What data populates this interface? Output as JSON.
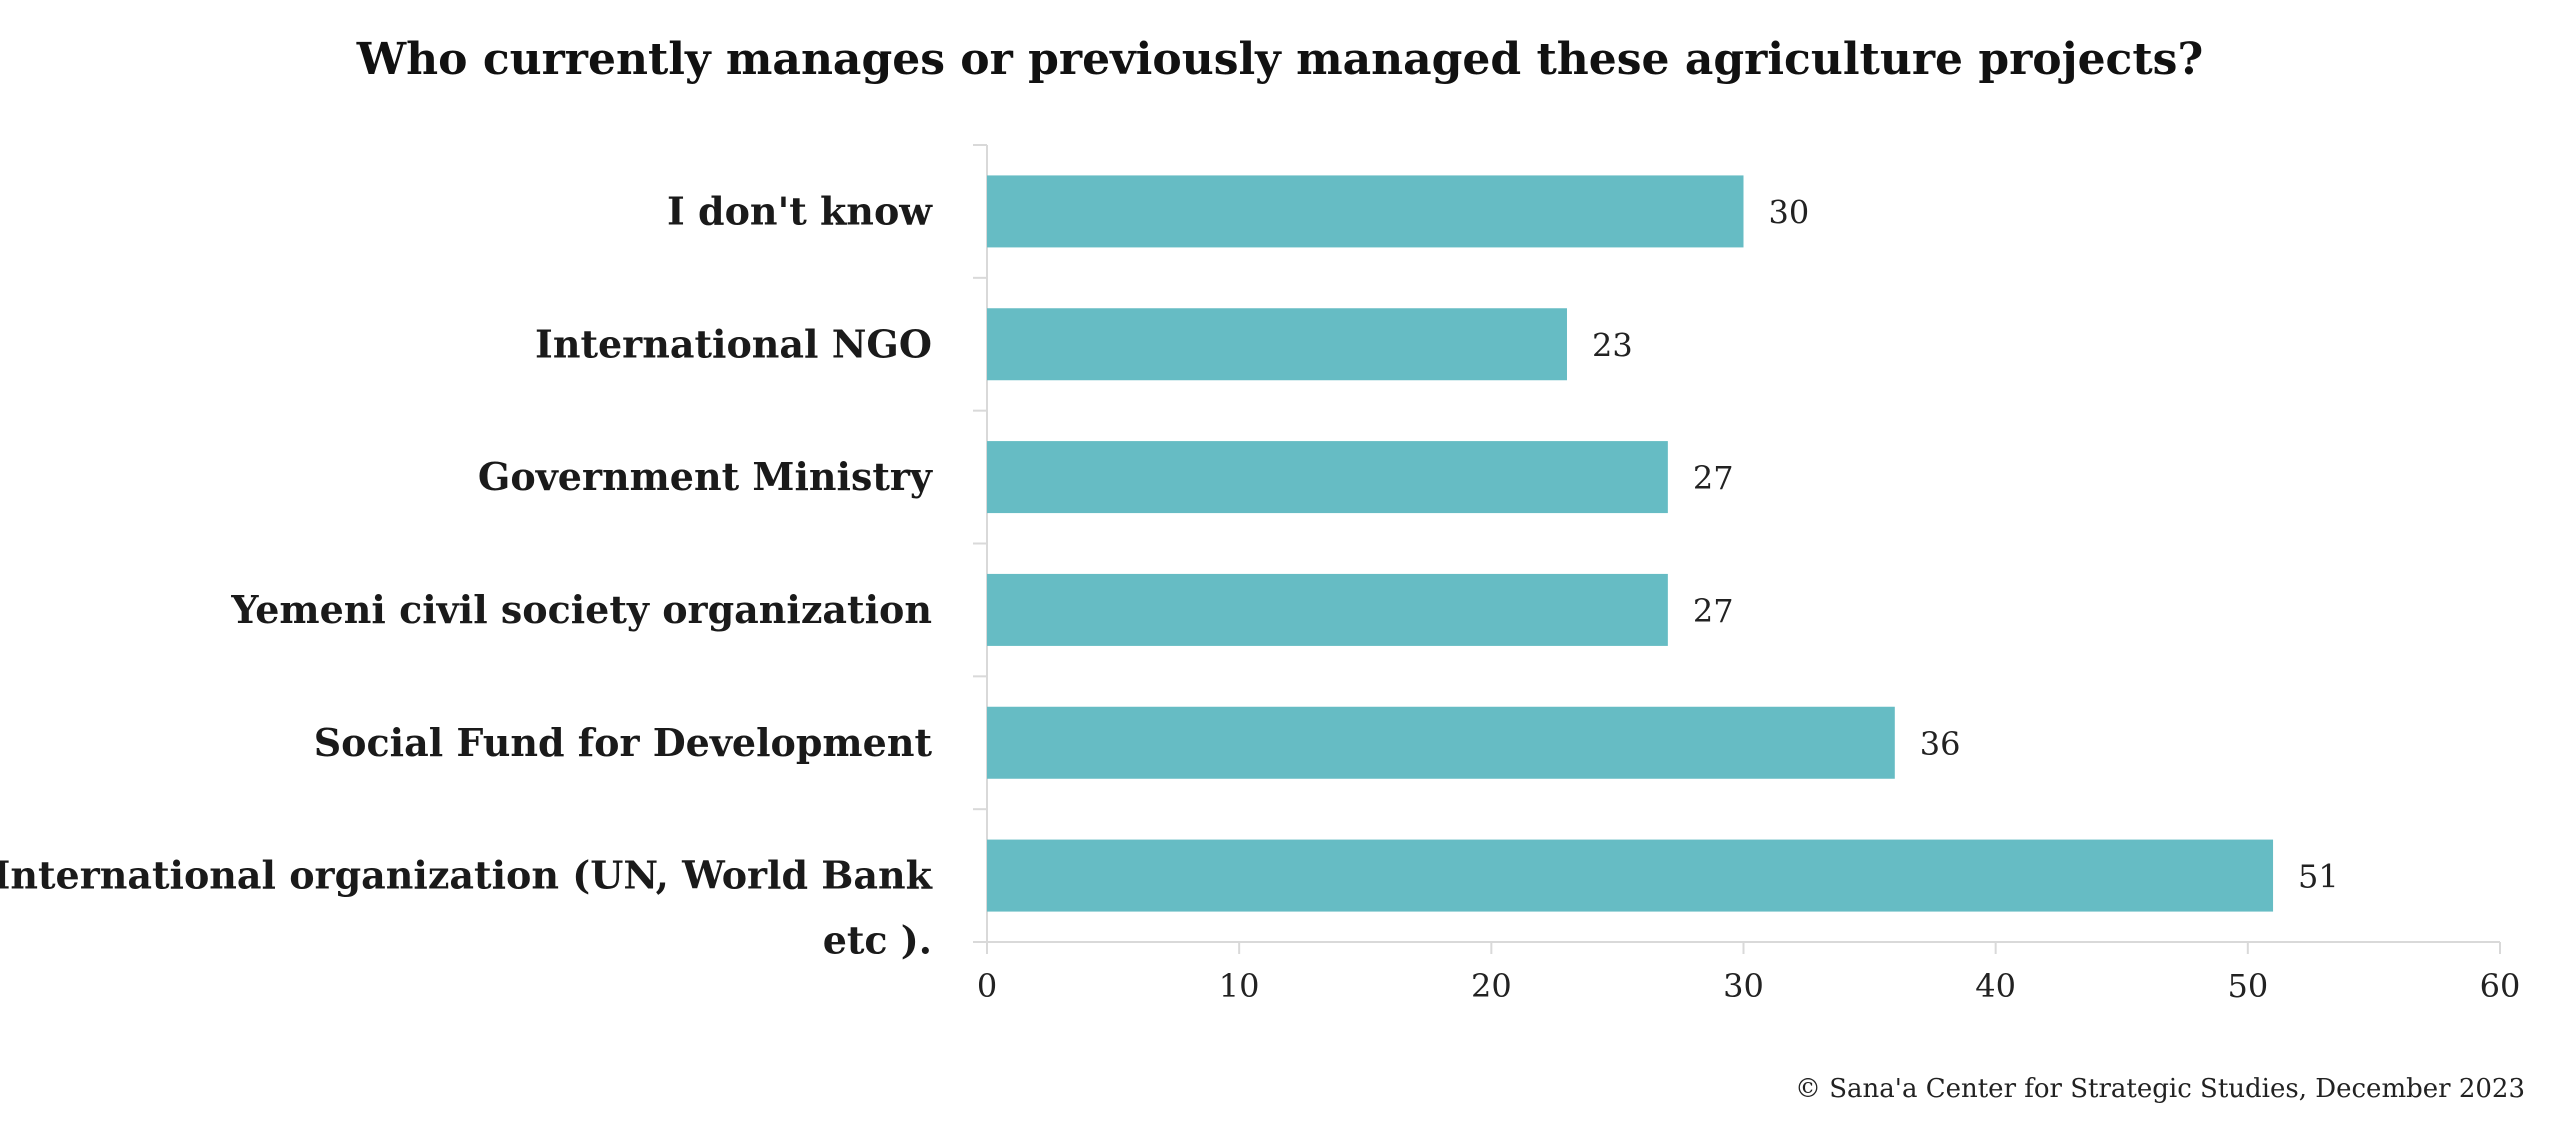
{
  "chart_data": {
    "type": "bar",
    "orientation": "horizontal",
    "title": "Who currently manages or previously managed these agriculture projects?",
    "categories": [
      "I don't know",
      "International NGO",
      "Government Ministry",
      "Yemeni civil society organization",
      "Social Fund for Development",
      "International organization (UN, World Bank etc ).|"
    ],
    "category_lines": [
      [
        "I don't know"
      ],
      [
        "International NGO"
      ],
      [
        "Government Ministry"
      ],
      [
        "Yemeni civil society organization"
      ],
      [
        "Social Fund for Development"
      ],
      [
        "International organization (UN, World Bank",
        "etc )."
      ]
    ],
    "values": [
      30,
      23,
      27,
      27,
      36,
      51
    ],
    "xlim": [
      0,
      60
    ],
    "xticks": [
      0,
      10,
      20,
      30,
      40,
      50,
      60
    ],
    "data_labels": true,
    "grid": false,
    "bar_color": "#66bcc4"
  },
  "credit": "© Sana'a Center for Strategic Studies, December 2023"
}
